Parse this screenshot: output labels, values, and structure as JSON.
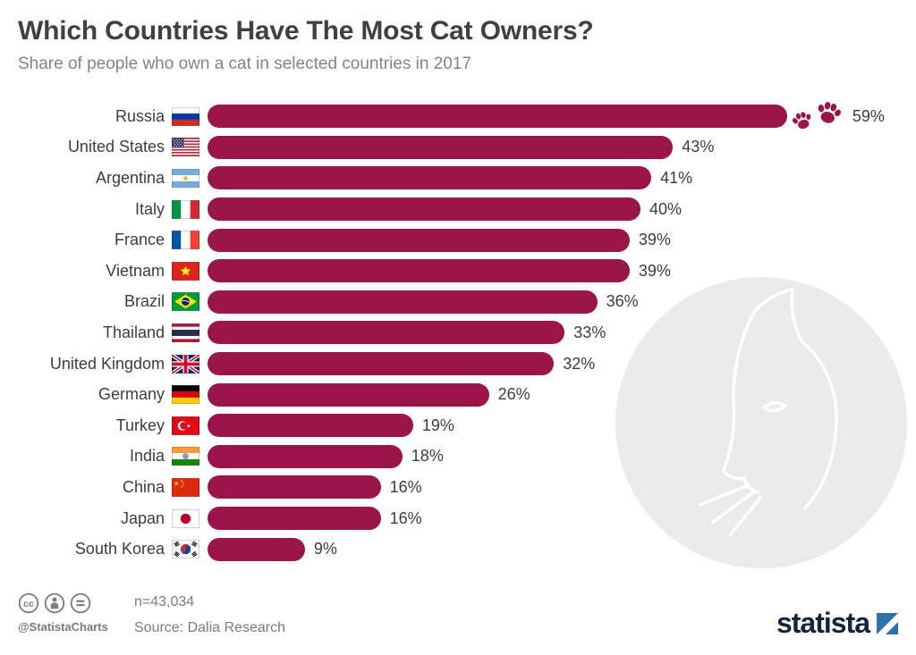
{
  "header": {
    "title": "Which Countries Have The Most Cat Owners?",
    "subtitle": "Share of people who own a cat in selected countries in 2017"
  },
  "chart_data": {
    "type": "bar",
    "orientation": "horizontal",
    "title": "Which Countries Have The Most Cat Owners?",
    "subtitle": "Share of people who own a cat in selected countries in 2017",
    "year": 2017,
    "unit": "%",
    "value_suffix": "%",
    "xlim": [
      0,
      59
    ],
    "grid": false,
    "legend": false,
    "categories": [
      "Russia",
      "United States",
      "Argentina",
      "Italy",
      "France",
      "Vietnam",
      "Brazil",
      "Thailand",
      "United Kingdom",
      "Germany",
      "Turkey",
      "India",
      "China",
      "Japan",
      "South Korea"
    ],
    "values": [
      59,
      43,
      41,
      40,
      39,
      39,
      36,
      33,
      32,
      26,
      19,
      18,
      16,
      16,
      9
    ],
    "flags": [
      "ru",
      "us",
      "ar",
      "it",
      "fr",
      "vn",
      "br",
      "th",
      "gb",
      "de",
      "tr",
      "in",
      "cn",
      "jp",
      "kr"
    ],
    "decoration": {
      "paw_prints_on": "Russia",
      "paw_count": 2
    },
    "watermark": "cat-silhouette-circle"
  },
  "footer": {
    "sample_size": "n=43,034",
    "source": "Source: Dalia Research",
    "credit_handle": "@StatistaCharts",
    "license_icons": [
      "creative-commons",
      "attribution",
      "no-derivatives"
    ],
    "brand": "statista"
  },
  "colors": {
    "bar": "#9c1549",
    "title": "#404040",
    "subtitle": "#848484",
    "label": "#3d3d3d",
    "footer_text": "#7b7b7b",
    "watermark_circle": "#ebebeb",
    "brand_navy": "#14243c",
    "brand_blue": "#2e71ab"
  }
}
